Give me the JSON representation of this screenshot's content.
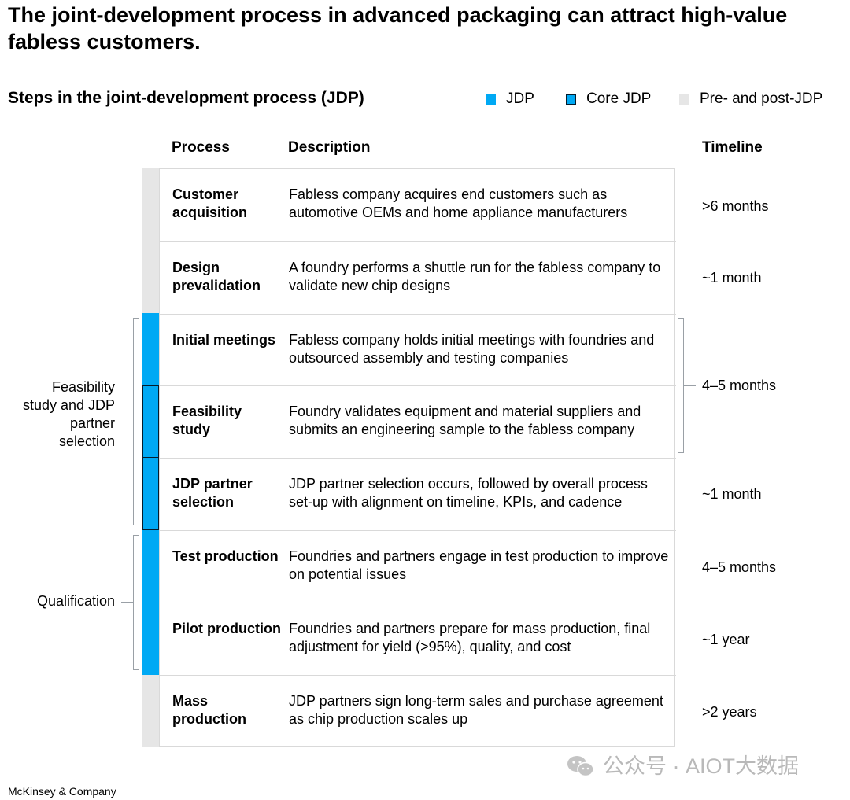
{
  "title": "The joint-development process in advanced packaging can attract high-value fabless customers.",
  "subtitle": "Steps in the joint-development process (JDP)",
  "legend": [
    {
      "label": "JDP",
      "color": "#00a9f4",
      "border": false
    },
    {
      "label": "Core JDP",
      "color": "#00a9f4",
      "border": true
    },
    {
      "label": "Pre- and post-JDP",
      "color": "#e6e6e6",
      "border": false
    }
  ],
  "headers": {
    "process": "Process",
    "description": "Description",
    "timeline": "Timeline"
  },
  "rows": [
    {
      "process": "Customer acquisition",
      "description": "Fabless company acquires end customers such as automotive OEMs and home appliance manufacturers",
      "category": "pre-post"
    },
    {
      "process": "Design prevalidation",
      "description": "A foundry performs a shuttle run for the fabless company to validate new chip designs",
      "category": "pre-post"
    },
    {
      "process": "Initial meetings",
      "description": "Fabless company holds initial meetings with foundries and outsourced assembly and testing companies",
      "category": "jdp"
    },
    {
      "process": "Feasibility study",
      "description": "Foundry validates equipment and material suppliers and submits an engineering sample to the fabless company",
      "category": "core-jdp"
    },
    {
      "process": "JDP partner selection",
      "description": "JDP partner selection occurs, followed by overall process set-up with alignment on timeline, KPIs, and cadence",
      "category": "core-jdp"
    },
    {
      "process": "Test production",
      "description": "Foundries and partners engage in test production to improve on potential issues",
      "category": "jdp"
    },
    {
      "process": "Pilot production",
      "description": "Foundries and partners prepare for mass production, final adjustment for yield (>95%), quality, and cost",
      "category": "jdp"
    },
    {
      "process": "Mass production",
      "description": "JDP partners sign long-term sales and purchase agreement as chip production scales up",
      "category": "pre-post"
    }
  ],
  "timelines": [
    ">6 months",
    "~1 month",
    "4–5 months",
    "~1 month",
    "4–5 months",
    "~1 year",
    ">2 years"
  ],
  "groups": [
    "Feasibility study and JDP partner selection",
    "Qualification"
  ],
  "colors": {
    "jdp": "#00a9f4",
    "pre_post": "#e6e6e6",
    "core_border": "#051c2c",
    "divider": "#d9d9d9"
  },
  "footer": "McKinsey & Company",
  "watermark": "公众号 · AIOT大数据"
}
